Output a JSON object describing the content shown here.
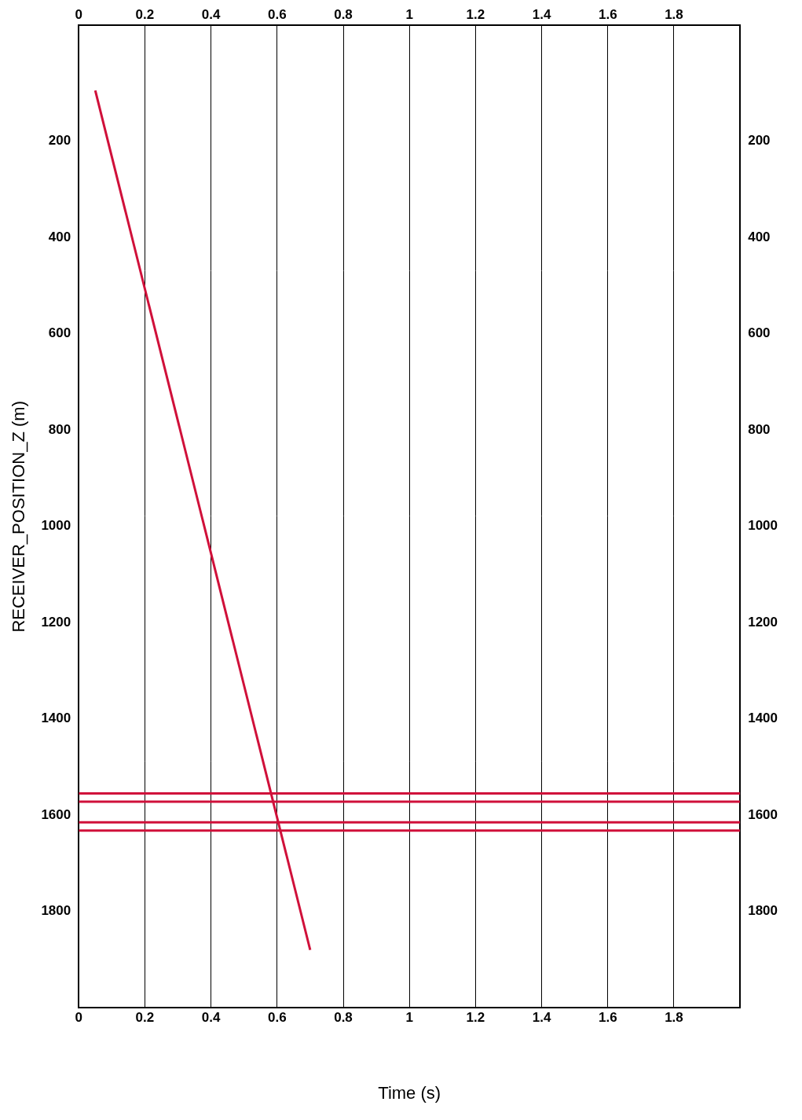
{
  "chart_data": {
    "type": "line",
    "x_label": "Time (s)",
    "y_label": "RECEIVER_POSITION_Z (m)",
    "xlim": [
      0,
      2
    ],
    "xticks": [
      0,
      0.2,
      0.4,
      0.6,
      0.8,
      1,
      1.2,
      1.4,
      1.6,
      1.8
    ],
    "ylim": [
      2000,
      -40
    ],
    "yticks": [
      200,
      400,
      600,
      800,
      1000,
      1200,
      1400,
      1600,
      1800
    ],
    "grid": true,
    "series": [
      {
        "color": "#d0103a",
        "x": [
          0.05,
          0.7
        ],
        "values": [
          95,
          1880
        ]
      },
      {
        "color": "#d0103a",
        "x": [
          0,
          2
        ],
        "values": [
          1555,
          1555
        ]
      },
      {
        "color": "#d0103a",
        "x": [
          0,
          2
        ],
        "values": [
          1572,
          1572
        ]
      },
      {
        "color": "#d0103a",
        "x": [
          0,
          2
        ],
        "values": [
          1615,
          1615
        ]
      },
      {
        "color": "#d0103a",
        "x": [
          0,
          2
        ],
        "values": [
          1632,
          1632
        ]
      }
    ]
  }
}
